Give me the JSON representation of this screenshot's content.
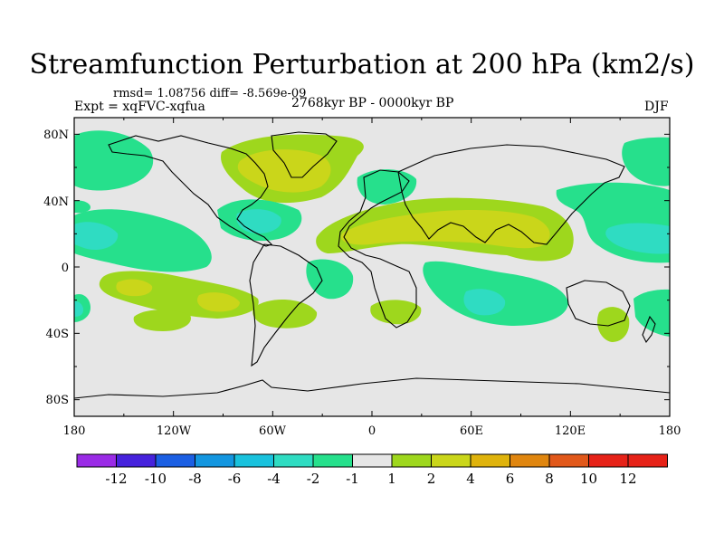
{
  "chart_data": {
    "type": "contour-map",
    "title": "Streamfunction Perturbation at 200 hPa (km2/s)",
    "rmsd_line": "rmsd= 1.08756  diff= -8.569e-09",
    "expt_line": "Expt = xqFVC-xqfua",
    "period_line": "2768kyr BP - 0000kyr BP",
    "season": "DJF",
    "x_ticks": [
      "180",
      "120W",
      "60W",
      "0",
      "60E",
      "120E",
      "180"
    ],
    "y_ticks": [
      "80N",
      "40N",
      "0",
      "40S",
      "80S"
    ],
    "lon_range": [
      -180,
      180
    ],
    "lat_range": [
      -90,
      90
    ],
    "colorbar": {
      "labels": [
        "-12",
        "-10",
        "-8",
        "-6",
        "-4",
        "-2",
        "-1",
        "1",
        "2",
        "4",
        "6",
        "8",
        "10",
        "12"
      ],
      "colors": [
        "#9a2be6",
        "#4622dc",
        "#1b5fe3",
        "#1396e0",
        "#19c2dd",
        "#2fdcc2",
        "#26e08c",
        "#e6e6e6",
        "#9ed71d",
        "#cad61a",
        "#dfb30c",
        "#e0860f",
        "#e1581a",
        "#e62218"
      ]
    },
    "fill_levels": {
      "neutral": "#e6e6e6",
      "neg1": "#26e08c",
      "neg2": "#2fdcc2",
      "pos1": "#9ed71d",
      "pos2": "#cad61a"
    },
    "anomalies": [
      {
        "name": "north-atlantic-high",
        "sign": "positive",
        "lon": -50,
        "lat": 58,
        "level": "2 to 4"
      },
      {
        "name": "north-africa-asia-high",
        "sign": "positive",
        "lon": 55,
        "lat": 25,
        "level": "2 to 4"
      },
      {
        "name": "south-pacific-high",
        "sign": "positive",
        "lon": -130,
        "lat": -25,
        "level": "2 to 4"
      },
      {
        "name": "north-pacific-low",
        "sign": "negative",
        "lon": -158,
        "lat": 18,
        "level": "-2 to -4"
      },
      {
        "name": "caribbean-low",
        "sign": "negative",
        "lon": -70,
        "lat": 25,
        "level": "-2 to -4"
      },
      {
        "name": "west-pacific-low",
        "sign": "negative",
        "lon": 160,
        "lat": 18,
        "level": "-2 to -4"
      },
      {
        "name": "indian-ocean-low",
        "sign": "negative",
        "lon": 70,
        "lat": -18,
        "level": "-2 to -4"
      },
      {
        "name": "southwest-pacific-low",
        "sign": "negative",
        "lon": 172,
        "lat": -28,
        "level": "-1 to -2"
      }
    ]
  }
}
